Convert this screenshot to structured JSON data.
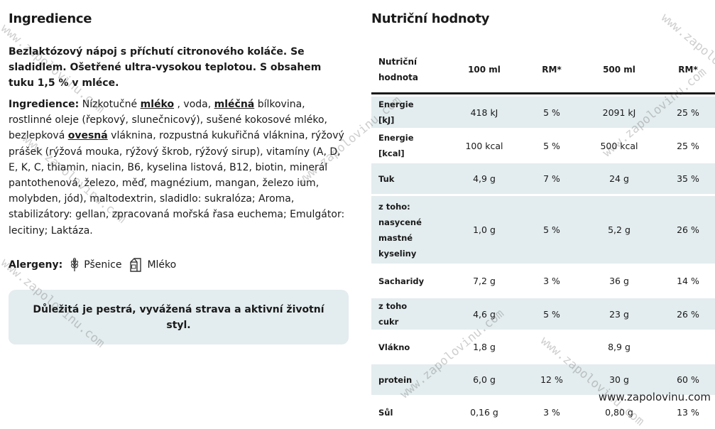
{
  "ingredients": {
    "title": "Ingredience",
    "description": "Bezlaktózový nápoj s příchutí citronového koláče. Se sladidlem. Ošetřené ultra-vysokou teplotou. S obsahem tuku 1,5 % v mléce.",
    "label": "Ingredience:",
    "parts": [
      " Nízkotučné ",
      "mléko",
      " , voda, ",
      "mléčná",
      " bílkovina, rostlinné oleje (řepkový, slunečnicový), sušené kokosové mléko, bezlepková ",
      "ovesná",
      " vláknina, rozpustná kukuřičná vláknina, rýžový prášek (rýžová mouka, rýžový škrob, rýžový sirup), vitamíny (A, D, E, K, C, thiamin, niacin, B6, kyselina listová, B12, biotin, minerál pantothenová, železo, měď, magnézium, mangan, železo ium, molybden, jód), maltodextrin, sladidlo: sukralóza; Aroma, stabilizátory: gellan, zpracovaná mořská řasa euchema; Emulgátor: lecitiny; Laktáza."
    ]
  },
  "allergens": {
    "label": "Alergeny:",
    "items": [
      {
        "name": "Pšenice",
        "icon": "wheat-icon"
      },
      {
        "name": "Mléko",
        "icon": "milk-carton-icon"
      }
    ]
  },
  "note": "Důležitá je pestrá, vyvážená strava a aktivní životní styl.",
  "nutrition": {
    "title": "Nutriční hodnoty",
    "headers": [
      "Nutriční hodnota",
      "100 ml",
      "RM*",
      "500 ml",
      "RM*"
    ],
    "rows": [
      [
        "Energie [kJ]",
        "418 kJ",
        "5 %",
        "2091 kJ",
        "25 %"
      ],
      [
        "Energie [kcal]",
        "100 kcal",
        "5 %",
        "500 kcal",
        "25 %"
      ],
      [
        "Tuk",
        "4,9 g",
        "7 %",
        "24 g",
        "35 %"
      ],
      [
        "z toho: nasycené mastné kyseliny",
        "1,0 g",
        "5 %",
        "5,2 g",
        "26 %"
      ],
      [
        "Sacharidy",
        "7,2 g",
        "3 %",
        "36 g",
        "14 %"
      ],
      [
        "z toho cukr",
        "4,6 g",
        "5 %",
        "23 g",
        "26 %"
      ],
      [
        "Vlákno",
        "1,8 g",
        "",
        "8,9 g",
        ""
      ],
      [
        "protein",
        "6,0 g",
        "12 %",
        "30 g",
        "60 %"
      ],
      [
        "Sůl",
        "0,16 g",
        "3 %",
        "0,80 g",
        "13 %"
      ]
    ]
  },
  "watermark": "www.zapolovinu.com",
  "colors": {
    "shade": "#e3ecee",
    "text": "#1a1a1a"
  }
}
